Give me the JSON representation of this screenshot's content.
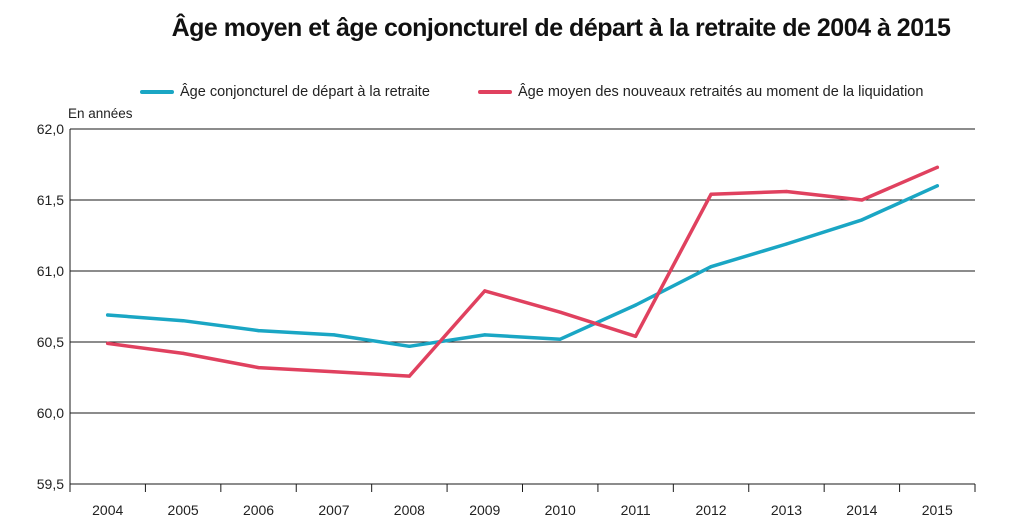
{
  "chart_data": {
    "type": "line",
    "title": "Âge moyen et âge conjoncturel de départ à la retraite de 2004 à 2015",
    "ylabel": "En années",
    "xlabel": "",
    "categories": [
      "2004",
      "2005",
      "2006",
      "2007",
      "2008",
      "2009",
      "2010",
      "2011",
      "2012",
      "2013",
      "2014",
      "2015"
    ],
    "ylim": [
      59.5,
      62.0
    ],
    "yticks": [
      "62,0",
      "61,5",
      "61,0",
      "60,5",
      "60,0",
      "59,5"
    ],
    "ytick_values": [
      62.0,
      61.5,
      61.0,
      60.5,
      60.0,
      59.5
    ],
    "grid": true,
    "legend_position": "top",
    "series": [
      {
        "name": "Âge conjoncturel de départ à la retraite",
        "color": "#1aa6c4",
        "values": [
          60.69,
          60.65,
          60.58,
          60.55,
          60.47,
          60.55,
          60.52,
          60.76,
          61.03,
          61.19,
          61.36,
          61.6
        ]
      },
      {
        "name": "Âge moyen des nouveaux retraités au moment de la liquidation",
        "color": "#e0415f",
        "values": [
          60.49,
          60.42,
          60.32,
          60.29,
          60.26,
          60.86,
          60.71,
          60.54,
          61.54,
          61.56,
          61.5,
          61.73
        ]
      }
    ]
  }
}
